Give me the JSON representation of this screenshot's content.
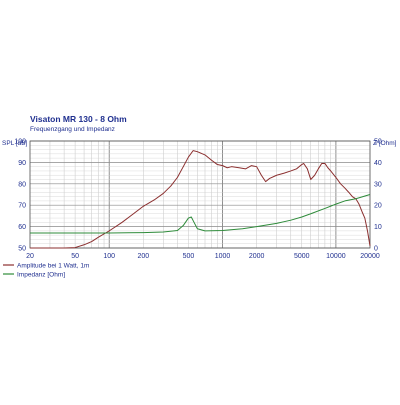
{
  "chart_data": {
    "type": "line",
    "title": "Visaton MR 130 - 8 Ohm",
    "subtitle": "Frequenzgang und Impedanz",
    "x_scale": "log",
    "xlim": [
      20,
      20000
    ],
    "x_ticks": [
      20,
      50,
      100,
      200,
      500,
      1000,
      2000,
      5000,
      10000,
      20000
    ],
    "y_left": {
      "label": "SPL [dB]",
      "lim": [
        50,
        100
      ],
      "ticks": [
        50,
        60,
        70,
        80,
        90,
        100
      ]
    },
    "y_right": {
      "label": "Z [Ohm]",
      "lim": [
        0,
        50
      ],
      "ticks": [
        0,
        10,
        20,
        30,
        40,
        50
      ]
    },
    "grid": true,
    "legend_position": "bottom-left",
    "series": [
      {
        "name": "Amplitude bei 1 Watt, 1m",
        "axis": "left",
        "color": "#8b2f2f",
        "points": [
          [
            20,
            50
          ],
          [
            30,
            50
          ],
          [
            40,
            50
          ],
          [
            50,
            50.2
          ],
          [
            60,
            51.5
          ],
          [
            70,
            53
          ],
          [
            80,
            55
          ],
          [
            100,
            58
          ],
          [
            130,
            62
          ],
          [
            150,
            64.5
          ],
          [
            200,
            69.5
          ],
          [
            250,
            72.5
          ],
          [
            300,
            75.5
          ],
          [
            350,
            79
          ],
          [
            400,
            83
          ],
          [
            450,
            88
          ],
          [
            500,
            92.5
          ],
          [
            550,
            95.5
          ],
          [
            600,
            95
          ],
          [
            700,
            93.5
          ],
          [
            800,
            91
          ],
          [
            900,
            89
          ],
          [
            1000,
            88.5
          ],
          [
            1100,
            87.5
          ],
          [
            1200,
            88
          ],
          [
            1400,
            87.5
          ],
          [
            1600,
            87
          ],
          [
            1800,
            88.5
          ],
          [
            2000,
            88
          ],
          [
            2200,
            84
          ],
          [
            2400,
            81
          ],
          [
            2600,
            82.5
          ],
          [
            3000,
            84
          ],
          [
            3500,
            85
          ],
          [
            4000,
            86
          ],
          [
            4500,
            87
          ],
          [
            5000,
            89
          ],
          [
            5200,
            89.5
          ],
          [
            5600,
            87
          ],
          [
            6000,
            82
          ],
          [
            6500,
            84
          ],
          [
            7000,
            87
          ],
          [
            7500,
            89.5
          ],
          [
            8000,
            89.5
          ],
          [
            8500,
            87.5
          ],
          [
            9000,
            86
          ],
          [
            10000,
            83
          ],
          [
            11000,
            80
          ],
          [
            12000,
            78
          ],
          [
            13000,
            76
          ],
          [
            14000,
            74
          ],
          [
            15000,
            73
          ],
          [
            16000,
            70.5
          ],
          [
            17000,
            67
          ],
          [
            18000,
            64
          ],
          [
            19000,
            58
          ],
          [
            20000,
            51
          ]
        ]
      },
      {
        "name": "Impedanz [Ohm]",
        "axis": "right",
        "color": "#2e8b3a",
        "points": [
          [
            20,
            7
          ],
          [
            50,
            7
          ],
          [
            100,
            7
          ],
          [
            200,
            7.2
          ],
          [
            300,
            7.5
          ],
          [
            400,
            8.2
          ],
          [
            450,
            10.5
          ],
          [
            500,
            14
          ],
          [
            530,
            14.5
          ],
          [
            560,
            12
          ],
          [
            600,
            9
          ],
          [
            700,
            8
          ],
          [
            1000,
            8.2
          ],
          [
            1500,
            9
          ],
          [
            2000,
            10
          ],
          [
            3000,
            11.5
          ],
          [
            4000,
            13
          ],
          [
            5000,
            14.5
          ],
          [
            6000,
            16
          ],
          [
            8000,
            18.5
          ],
          [
            10000,
            20.5
          ],
          [
            12000,
            22
          ],
          [
            15000,
            23
          ],
          [
            20000,
            25
          ]
        ]
      }
    ]
  }
}
